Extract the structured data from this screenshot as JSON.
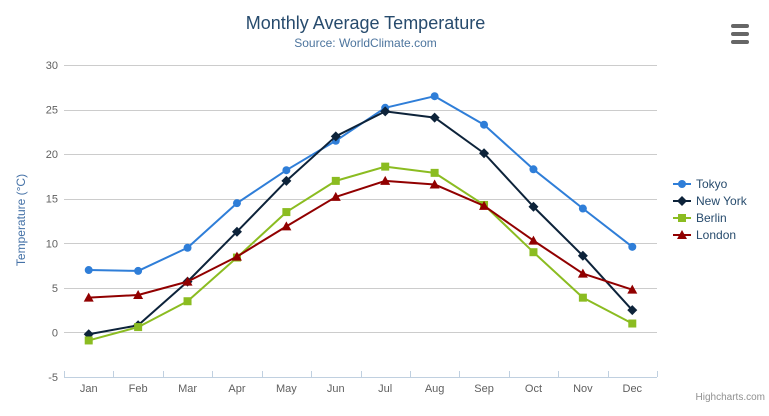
{
  "icons": {
    "menu": "hamburger-menu-icon"
  },
  "colors": {
    "title": "#274b6d",
    "subtitle": "#4d759e",
    "axis_label": "#606060",
    "axis_title": "#4572a7",
    "grid": "#cccccc",
    "axis_line": "#c0d0e0",
    "legend_text": "#274b6d",
    "credits": "#909090",
    "menu_icon": "#666666"
  },
  "credits_label": "Highcharts.com",
  "chart_data": {
    "type": "line",
    "title": "Monthly Average Temperature",
    "subtitle": "Source: WorldClimate.com",
    "xlabel": "",
    "ylabel": "Temperature (°C)",
    "categories": [
      "Jan",
      "Feb",
      "Mar",
      "Apr",
      "May",
      "Jun",
      "Jul",
      "Aug",
      "Sep",
      "Oct",
      "Nov",
      "Dec"
    ],
    "ylim": [
      -5,
      30
    ],
    "ytick_step": 5,
    "grid": true,
    "legend_position": "right",
    "series": [
      {
        "name": "Tokyo",
        "color": "#2f7ed8",
        "marker": "circle",
        "values": [
          7.0,
          6.9,
          9.5,
          14.5,
          18.2,
          21.5,
          25.2,
          26.5,
          23.3,
          18.3,
          13.9,
          9.6
        ]
      },
      {
        "name": "New York",
        "color": "#0d233a",
        "marker": "diamond",
        "values": [
          -0.2,
          0.8,
          5.7,
          11.3,
          17.0,
          22.0,
          24.8,
          24.1,
          20.1,
          14.1,
          8.6,
          2.5
        ]
      },
      {
        "name": "Berlin",
        "color": "#8bbc21",
        "marker": "square",
        "values": [
          -0.9,
          0.6,
          3.5,
          8.4,
          13.5,
          17.0,
          18.6,
          17.9,
          14.3,
          9.0,
          3.9,
          1.0
        ]
      },
      {
        "name": "London",
        "color": "#910000",
        "marker": "triangle",
        "values": [
          3.9,
          4.2,
          5.7,
          8.5,
          11.9,
          15.2,
          17.0,
          16.6,
          14.2,
          10.3,
          6.6,
          4.8
        ]
      }
    ]
  }
}
